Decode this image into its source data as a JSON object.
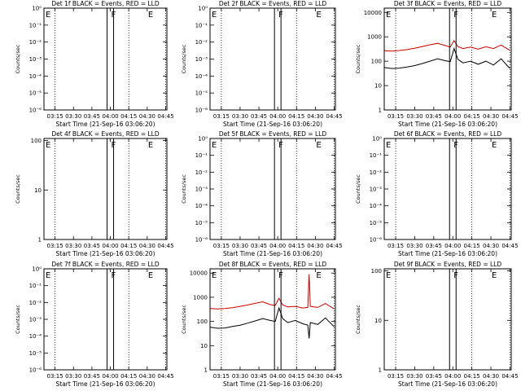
{
  "chart_data": [
    {
      "type": "line",
      "title": "Det 1f BLACK = Events, RED = LLD",
      "ylabel": "Counts/sec",
      "xlabel": "Start Time (21-Sep-16 03:06:20)",
      "x_ticks": [
        "03:15",
        "03:30",
        "03:45",
        "04:00",
        "04:15",
        "04:30",
        "04:45"
      ],
      "y_scale": "log",
      "y_ticks": [
        "10⁰",
        "10⁻¹",
        "10⁻²",
        "10⁻³",
        "10⁻⁴",
        "10⁻⁵",
        "10⁻⁶"
      ],
      "ylim": [
        1e-06,
        1
      ],
      "markers": [
        {
          "label": "E",
          "x": "03:06"
        },
        {
          "label": "F",
          "x": "04:00"
        },
        {
          "label": "E",
          "x": "04:30"
        }
      ],
      "series": []
    },
    {
      "type": "line",
      "title": "Det 2f BLACK = Events, RED = LLD",
      "ylabel": "Counts/sec",
      "xlabel": "Start Time (21-Sep-16 03:06:20)",
      "x_ticks": [
        "03:15",
        "03:30",
        "03:45",
        "04:00",
        "04:15",
        "04:30",
        "04:45"
      ],
      "y_scale": "log",
      "y_ticks": [
        "10⁰",
        "10⁻¹",
        "10⁻²",
        "10⁻³",
        "10⁻⁴",
        "10⁻⁵",
        "10⁻⁶"
      ],
      "ylim": [
        1e-06,
        1
      ],
      "markers": [
        {
          "label": "E",
          "x": "03:06"
        },
        {
          "label": "F",
          "x": "04:00"
        },
        {
          "label": "E",
          "x": "04:30"
        }
      ],
      "series": []
    },
    {
      "type": "line",
      "title": "Det 3f BLACK = Events, RED = LLD",
      "ylabel": "Counts/sec",
      "xlabel": "Start Time (21-Sep-16 03:06:20)",
      "x_ticks": [
        "03:15",
        "03:30",
        "03:45",
        "04:00",
        "04:15",
        "04:30",
        "04:45"
      ],
      "y_scale": "log",
      "y_ticks": [
        "1",
        "10",
        "100",
        "1000",
        "10000"
      ],
      "ylim": [
        1,
        15000
      ],
      "markers": [
        {
          "label": "E",
          "x": "03:06"
        },
        {
          "label": "F",
          "x": "04:00"
        },
        {
          "label": "E",
          "x": "04:30"
        }
      ],
      "series": [
        {
          "color": "#cc0000",
          "x": [
            "03:06",
            "03:12",
            "03:18",
            "03:24",
            "03:30",
            "03:36",
            "03:42",
            "03:48",
            "03:54",
            "03:58",
            "04:01",
            "04:04",
            "04:08",
            "04:14",
            "04:20",
            "04:26",
            "04:32",
            "04:38",
            "04:45"
          ],
          "values": [
            270,
            260,
            275,
            300,
            340,
            400,
            470,
            540,
            440,
            380,
            700,
            400,
            330,
            380,
            310,
            390,
            330,
            460,
            280
          ]
        },
        {
          "color": "#000000",
          "x": [
            "03:06",
            "03:12",
            "03:18",
            "03:24",
            "03:30",
            "03:36",
            "03:42",
            "03:48",
            "03:54",
            "03:58",
            "04:01",
            "04:04",
            "04:08",
            "04:14",
            "04:20",
            "04:26",
            "04:32",
            "04:38",
            "04:45"
          ],
          "values": [
            55,
            50,
            52,
            58,
            66,
            80,
            100,
            125,
            105,
            95,
            330,
            120,
            85,
            100,
            75,
            100,
            70,
            125,
            50
          ]
        }
      ]
    },
    {
      "type": "line",
      "title": "Det 4f BLACK = Events, RED = LLD",
      "ylabel": "Counts/sec",
      "xlabel": "Start Time (21-Sep-16 03:06:20)",
      "x_ticks": [
        "03:15",
        "03:30",
        "03:45",
        "04:00",
        "04:15",
        "04:30",
        "04:45"
      ],
      "y_scale": "log",
      "y_ticks": [
        "1",
        "10",
        "100"
      ],
      "ylim": [
        1,
        110
      ],
      "markers": [
        {
          "label": "E",
          "x": "03:06"
        },
        {
          "label": "F",
          "x": "04:00"
        },
        {
          "label": "E",
          "x": "04:30"
        }
      ],
      "series": []
    },
    {
      "type": "line",
      "title": "Det 5f BLACK = Events, RED = LLD",
      "ylabel": "Counts/sec",
      "xlabel": "Start Time (21-Sep-16 03:06:20)",
      "x_ticks": [
        "03:15",
        "03:30",
        "03:45",
        "04:00",
        "04:15",
        "04:30",
        "04:45"
      ],
      "y_scale": "log",
      "y_ticks": [
        "10⁰",
        "10⁻¹",
        "10⁻²",
        "10⁻³",
        "10⁻⁴",
        "10⁻⁵",
        "10⁻⁶"
      ],
      "ylim": [
        1e-06,
        1
      ],
      "markers": [
        {
          "label": "E",
          "x": "03:06"
        },
        {
          "label": "F",
          "x": "04:00"
        },
        {
          "label": "E",
          "x": "04:30"
        }
      ],
      "series": []
    },
    {
      "type": "line",
      "title": "Det 6f BLACK = Events, RED = LLD",
      "ylabel": "Counts/sec",
      "xlabel": "Start Time (21-Sep-16 03:06:20)",
      "x_ticks": [
        "03:15",
        "03:30",
        "03:45",
        "04:00",
        "04:15",
        "04:30",
        "04:45"
      ],
      "y_scale": "log",
      "y_ticks": [
        "10⁰",
        "10⁻¹",
        "10⁻²",
        "10⁻³",
        "10⁻⁴",
        "10⁻⁵",
        "10⁻⁶"
      ],
      "ylim": [
        1e-06,
        1
      ],
      "markers": [
        {
          "label": "E",
          "x": "03:06"
        },
        {
          "label": "F",
          "x": "04:00"
        },
        {
          "label": "E",
          "x": "04:30"
        }
      ],
      "series": []
    },
    {
      "type": "line",
      "title": "Det 7f BLACK = Events, RED = LLD",
      "ylabel": "Counts/sec",
      "xlabel": "Start Time (21-Sep-16 03:06:20)",
      "x_ticks": [
        "03:15",
        "03:30",
        "03:45",
        "04:00",
        "04:15",
        "04:30",
        "04:45"
      ],
      "y_scale": "log",
      "y_ticks": [
        "10⁰",
        "10⁻¹",
        "10⁻²",
        "10⁻³",
        "10⁻⁴",
        "10⁻⁵",
        "10⁻⁶"
      ],
      "ylim": [
        1e-06,
        1
      ],
      "markers": [
        {
          "label": "E",
          "x": "03:06"
        },
        {
          "label": "F",
          "x": "04:00"
        },
        {
          "label": "E",
          "x": "04:30"
        }
      ],
      "series": []
    },
    {
      "type": "line",
      "title": "Det 8f BLACK = Events, RED = LLD",
      "ylabel": "Counts/sec",
      "xlabel": "Start Time (21-Sep-16 03:06:20)",
      "x_ticks": [
        "03:15",
        "03:30",
        "03:45",
        "04:00",
        "04:15",
        "04:30",
        "04:45"
      ],
      "y_scale": "log",
      "y_ticks": [
        "1",
        "10",
        "100",
        "1000",
        "10000"
      ],
      "ylim": [
        1,
        15000
      ],
      "markers": [
        {
          "label": "E",
          "x": "03:06"
        },
        {
          "label": "F",
          "x": "04:00"
        },
        {
          "label": "E",
          "x": "04:30"
        }
      ],
      "series": [
        {
          "color": "#cc0000",
          "x": [
            "03:06",
            "03:12",
            "03:18",
            "03:24",
            "03:30",
            "03:36",
            "03:42",
            "03:48",
            "03:54",
            "03:58",
            "04:01",
            "04:04",
            "04:08",
            "04:14",
            "04:20",
            "04:24",
            "04:25",
            "04:26",
            "04:32",
            "04:38",
            "04:45"
          ],
          "values": [
            340,
            330,
            340,
            370,
            420,
            480,
            560,
            650,
            500,
            460,
            900,
            480,
            400,
            420,
            360,
            380,
            9000,
            420,
            380,
            550,
            330
          ]
        },
        {
          "color": "#000000",
          "x": [
            "03:06",
            "03:12",
            "03:18",
            "03:24",
            "03:30",
            "03:36",
            "03:42",
            "03:48",
            "03:54",
            "03:58",
            "04:01",
            "04:04",
            "04:08",
            "04:14",
            "04:20",
            "04:24",
            "04:25",
            "04:26",
            "04:32",
            "04:38",
            "04:45"
          ],
          "values": [
            58,
            52,
            54,
            62,
            70,
            85,
            105,
            130,
            110,
            100,
            360,
            130,
            90,
            110,
            80,
            70,
            20,
            90,
            75,
            140,
            60
          ]
        }
      ]
    },
    {
      "type": "line",
      "title": "Det 9f BLACK = Events, RED = LLD",
      "ylabel": "Counts/sec",
      "xlabel": "Start Time (21-Sep-16 03:06:20)",
      "x_ticks": [
        "03:15",
        "03:30",
        "03:45",
        "04:00",
        "04:15",
        "04:30",
        "04:45"
      ],
      "y_scale": "log",
      "y_ticks": [
        "1",
        "10",
        "100"
      ],
      "ylim": [
        1,
        110
      ],
      "markers": [
        {
          "label": "E",
          "x": "03:06"
        },
        {
          "label": "F",
          "x": "04:00"
        },
        {
          "label": "E",
          "x": "04:30"
        }
      ],
      "series": []
    }
  ]
}
